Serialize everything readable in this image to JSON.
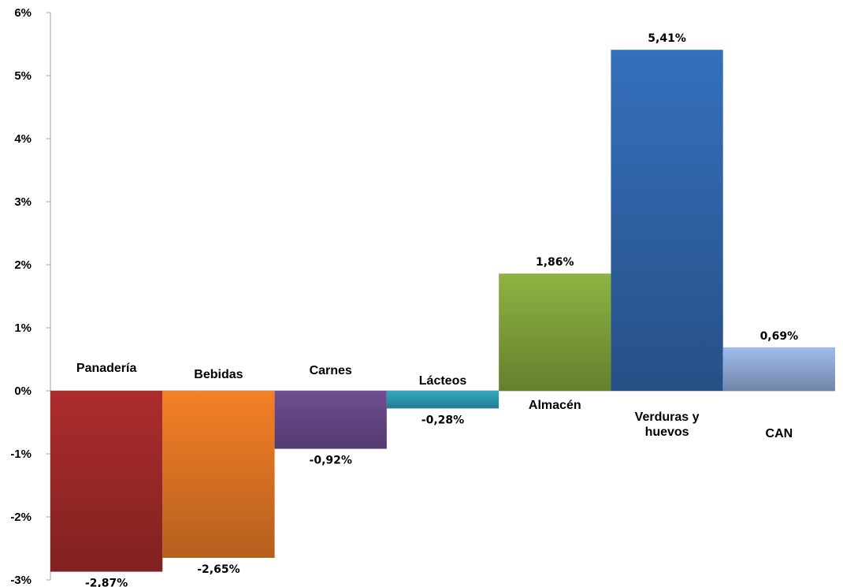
{
  "chart_data": {
    "type": "bar",
    "categories": [
      "Panadería",
      "Bebidas",
      "Carnes",
      "Lácteos",
      "Almacén",
      "Verduras y huevos",
      "CAN"
    ],
    "category_label_lines": [
      [
        "Panadería"
      ],
      [
        "Bebidas"
      ],
      [
        "Carnes"
      ],
      [
        "Lácteos"
      ],
      [
        "Almacén"
      ],
      [
        "Verduras y",
        "huevos"
      ],
      [
        "CAN"
      ]
    ],
    "values": [
      -2.87,
      -2.65,
      -0.92,
      -0.28,
      1.86,
      5.41,
      0.69
    ],
    "data_labels": [
      "-2,87%",
      "-2,65%",
      "-0,92%",
      "-0,28%",
      "1,86%",
      "5,41%",
      "0,69%"
    ],
    "colors": [
      "#a52a2a",
      "#e87a25",
      "#6a4a8c",
      "#2fa0b8",
      "#7ea03a",
      "#2f64a8",
      "#8fa8d4"
    ],
    "ylim": [
      -3,
      6
    ],
    "yticks": [
      -3,
      -2,
      -1,
      0,
      1,
      2,
      3,
      4,
      5,
      6
    ],
    "ytick_labels": [
      "-3%",
      "-2%",
      "-1%",
      "0%",
      "1%",
      "2%",
      "3%",
      "4%",
      "5%",
      "6%"
    ],
    "title": "",
    "xlabel": "",
    "ylabel": "",
    "grid": false,
    "legend": "none"
  }
}
